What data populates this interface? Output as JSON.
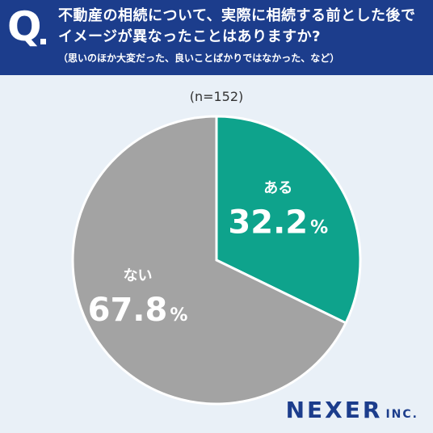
{
  "header": {
    "q_mark": "Q",
    "line1": "不動産の相続について、実際に相続する前とした後で",
    "line2": "イメージが異なったことはありますか?",
    "note": "（思いのほか大変だった、良いことばかりではなかった、など）"
  },
  "sample_size": "(n=152)",
  "brand": {
    "name": "NEXER",
    "suffix": "INC."
  },
  "colors": {
    "header_bg": "#1c3d8c",
    "background": "#e9f0f7",
    "yes": "#0ea38c",
    "no": "#a3a3a3"
  },
  "chart_data": {
    "type": "pie",
    "categories": [
      "ある",
      "ない"
    ],
    "values": [
      32.2,
      67.8
    ],
    "labels": [
      "32.2",
      "67.8"
    ],
    "unit": "%",
    "colors": [
      "#0ea38c",
      "#a3a3a3"
    ],
    "start": "top",
    "direction": "clockwise"
  }
}
